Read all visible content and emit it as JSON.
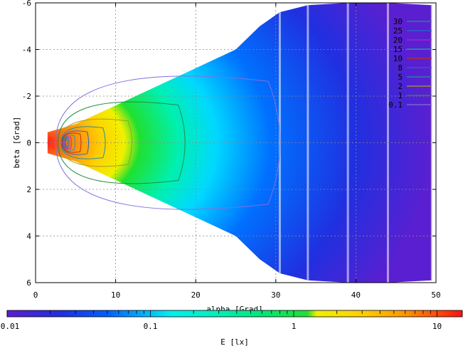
{
  "chart_data": {
    "type": "heatmap",
    "xlabel": "alpha [Grad]",
    "ylabel": "beta [Grad]",
    "colorbar_label": "E [lx]",
    "xlim": [
      0,
      50
    ],
    "ylim": [
      6,
      -6
    ],
    "x_ticks": [
      "0",
      "10",
      "20",
      "30",
      "40",
      "50"
    ],
    "y_ticks": [
      "-6",
      "-4",
      "-2",
      "0",
      "2",
      "4",
      "6"
    ],
    "colorbar_ticks": [
      "0.01",
      "0.1",
      "1",
      "10"
    ],
    "colorbar_range": [
      0.01,
      15
    ],
    "colorbar_scale": "log",
    "grid": true,
    "legend_position": "top-right",
    "legend": [
      {
        "name": "30",
        "color": "#00aa55"
      },
      {
        "name": "25",
        "color": "#1f6fc4"
      },
      {
        "name": "20",
        "color": "#c020c0"
      },
      {
        "name": "15",
        "color": "#20a0a0"
      },
      {
        "name": "10",
        "color": "#c03010"
      },
      {
        "name": "8",
        "color": "#3060c0"
      },
      {
        "name": "5",
        "color": "#2090a0"
      },
      {
        "name": "2",
        "color": "#a0a020"
      },
      {
        "name": "1",
        "color": "#209040"
      },
      {
        "name": "0.1",
        "color": "#8070e0"
      }
    ],
    "alpha_slices": [
      {
        "alpha": 5,
        "beta_max": 0.8
      },
      {
        "alpha": 10,
        "beta_max": 1.6
      },
      {
        "alpha": 15,
        "beta_max": 2.4
      },
      {
        "alpha": 20,
        "beta_max": 3.2
      },
      {
        "alpha": 25,
        "beta_max": 4.0
      },
      {
        "alpha": 28,
        "beta_max": 5.0
      },
      {
        "alpha": 30.5,
        "beta_max": 5.6
      },
      {
        "alpha": 34,
        "beta_max": 5.9
      },
      {
        "alpha": 39,
        "beta_max": 6.0
      },
      {
        "alpha": 44,
        "beta_max": 6.0
      },
      {
        "alpha": 49.5,
        "beta_max": 5.9
      }
    ],
    "contours": [
      {
        "level": "0.1",
        "color": "#8070e0",
        "alpha_min": 2.5,
        "alpha_max": 32,
        "beta_half": 3.1
      },
      {
        "level": "1",
        "color": "#209040",
        "alpha_min": 2.8,
        "alpha_max": 19.5,
        "beta_half": 1.9
      },
      {
        "level": "2",
        "color": "#a0a020",
        "alpha_min": 3.0,
        "alpha_max": 12.5,
        "beta_half": 1.1
      },
      {
        "level": "5",
        "color": "#2090a0",
        "alpha_min": 3.2,
        "alpha_max": 9.0,
        "beta_half": 0.75
      },
      {
        "level": "8",
        "color": "#3060c0",
        "alpha_min": 3.3,
        "alpha_max": 6.8,
        "beta_half": 0.55
      },
      {
        "level": "10",
        "color": "#c03010",
        "alpha_min": 3.4,
        "alpha_max": 5.8,
        "beta_half": 0.45
      },
      {
        "level": "15",
        "color": "#20a0a0",
        "alpha_min": 3.5,
        "alpha_max": 5.0,
        "beta_half": 0.35
      },
      {
        "level": "20",
        "color": "#c020c0",
        "alpha_min": 3.6,
        "alpha_max": 4.5,
        "beta_half": 0.28
      },
      {
        "level": "25",
        "color": "#1f6fc4",
        "alpha_min": 3.7,
        "alpha_max": 4.2,
        "beta_half": 0.22
      },
      {
        "level": "30",
        "color": "#00aa55",
        "alpha_min": 3.75,
        "alpha_max": 4.0,
        "beta_half": 0.15
      }
    ]
  }
}
